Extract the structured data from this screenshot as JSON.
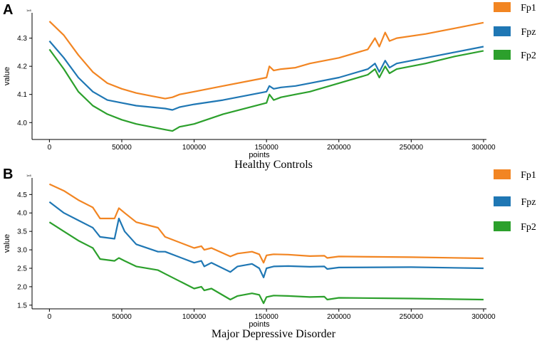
{
  "chart_data": [
    {
      "type": "line",
      "panel": "A",
      "caption": "Healthy Controls",
      "xlabel": "points",
      "ylabel": "value",
      "scale_tag": "1e8",
      "xlim": [
        -12000,
        302000
      ],
      "ylim": [
        3.94,
        4.39
      ],
      "xticks": [
        0,
        50000,
        100000,
        150000,
        200000,
        250000,
        300000
      ],
      "yticks": [
        4.0,
        4.1,
        4.2,
        4.3
      ],
      "ytick_labels": [
        "4.0",
        "4.1",
        "4.2",
        "4.3"
      ],
      "legend_position": "right",
      "series": [
        {
          "name": "Fp1",
          "color": "#F28522",
          "x": [
            0,
            10000,
            20000,
            30000,
            40000,
            50000,
            60000,
            70000,
            80000,
            85000,
            90000,
            100000,
            120000,
            150000,
            152000,
            155000,
            160000,
            170000,
            180000,
            200000,
            220000,
            225000,
            228000,
            232000,
            235000,
            240000,
            260000,
            280000,
            300000
          ],
          "values": [
            4.36,
            4.31,
            4.24,
            4.18,
            4.14,
            4.12,
            4.105,
            4.095,
            4.085,
            4.09,
            4.1,
            4.11,
            4.13,
            4.16,
            4.2,
            4.185,
            4.19,
            4.195,
            4.21,
            4.23,
            4.26,
            4.3,
            4.27,
            4.32,
            4.29,
            4.3,
            4.315,
            4.335,
            4.355
          ]
        },
        {
          "name": "Fpz",
          "color": "#1F77B4",
          "x": [
            0,
            10000,
            20000,
            30000,
            40000,
            50000,
            60000,
            70000,
            80000,
            85000,
            90000,
            100000,
            120000,
            150000,
            152000,
            155000,
            160000,
            170000,
            180000,
            200000,
            220000,
            225000,
            228000,
            232000,
            235000,
            240000,
            260000,
            280000,
            300000
          ],
          "values": [
            4.29,
            4.23,
            4.16,
            4.11,
            4.08,
            4.07,
            4.06,
            4.055,
            4.05,
            4.045,
            4.055,
            4.065,
            4.08,
            4.11,
            4.13,
            4.12,
            4.125,
            4.13,
            4.14,
            4.16,
            4.19,
            4.21,
            4.18,
            4.22,
            4.195,
            4.21,
            4.23,
            4.25,
            4.27
          ]
        },
        {
          "name": "Fp2",
          "color": "#2CA02C",
          "x": [
            0,
            10000,
            20000,
            30000,
            40000,
            50000,
            60000,
            70000,
            80000,
            85000,
            90000,
            100000,
            120000,
            150000,
            152000,
            155000,
            160000,
            170000,
            180000,
            200000,
            220000,
            225000,
            228000,
            232000,
            235000,
            240000,
            260000,
            280000,
            300000
          ],
          "values": [
            4.26,
            4.19,
            4.11,
            4.06,
            4.03,
            4.01,
            3.995,
            3.985,
            3.975,
            3.97,
            3.985,
            3.995,
            4.03,
            4.07,
            4.1,
            4.08,
            4.09,
            4.1,
            4.11,
            4.14,
            4.17,
            4.19,
            4.16,
            4.2,
            4.175,
            4.19,
            4.21,
            4.235,
            4.255
          ]
        }
      ]
    },
    {
      "type": "line",
      "panel": "B",
      "caption": "Major Depressive Disorder",
      "xlabel": "points",
      "ylabel": "value",
      "scale_tag": "1e8",
      "xlim": [
        -12000,
        302000
      ],
      "ylim": [
        1.4,
        4.95
      ],
      "xticks": [
        0,
        50000,
        100000,
        150000,
        200000,
        250000,
        300000
      ],
      "yticks": [
        1.5,
        2.0,
        2.5,
        3.0,
        3.5,
        4.0,
        4.5
      ],
      "ytick_labels": [
        "1.5",
        "2.0",
        "2.5",
        "3.0",
        "3.5",
        "4.0",
        "4.5"
      ],
      "legend_position": "right",
      "series": [
        {
          "name": "Fp1",
          "color": "#F28522",
          "x": [
            0,
            10000,
            20000,
            30000,
            35000,
            45000,
            48000,
            52000,
            60000,
            75000,
            80000,
            100000,
            105000,
            107000,
            112000,
            125000,
            130000,
            140000,
            145000,
            148000,
            150000,
            155000,
            165000,
            180000,
            190000,
            192000,
            200000,
            250000,
            300000
          ],
          "values": [
            4.78,
            4.6,
            4.35,
            4.15,
            3.85,
            3.85,
            4.13,
            4.0,
            3.75,
            3.6,
            3.35,
            3.05,
            3.1,
            3.0,
            3.05,
            2.82,
            2.9,
            2.95,
            2.88,
            2.65,
            2.85,
            2.88,
            2.87,
            2.83,
            2.84,
            2.78,
            2.82,
            2.8,
            2.77
          ]
        },
        {
          "name": "Fpz",
          "color": "#1F77B4",
          "x": [
            0,
            10000,
            20000,
            30000,
            35000,
            45000,
            48000,
            52000,
            60000,
            75000,
            80000,
            100000,
            105000,
            107000,
            112000,
            125000,
            130000,
            140000,
            145000,
            148000,
            150000,
            155000,
            165000,
            180000,
            190000,
            192000,
            200000,
            250000,
            300000
          ],
          "values": [
            4.3,
            4.0,
            3.8,
            3.6,
            3.35,
            3.3,
            3.85,
            3.5,
            3.15,
            2.95,
            2.95,
            2.65,
            2.7,
            2.55,
            2.65,
            2.4,
            2.55,
            2.62,
            2.5,
            2.25,
            2.5,
            2.55,
            2.56,
            2.54,
            2.55,
            2.48,
            2.52,
            2.53,
            2.5
          ]
        },
        {
          "name": "Fp2",
          "color": "#2CA02C",
          "x": [
            0,
            10000,
            20000,
            30000,
            35000,
            45000,
            48000,
            52000,
            60000,
            75000,
            80000,
            100000,
            105000,
            107000,
            112000,
            125000,
            130000,
            140000,
            145000,
            148000,
            150000,
            155000,
            165000,
            180000,
            190000,
            192000,
            200000,
            250000,
            300000
          ],
          "values": [
            3.75,
            3.5,
            3.25,
            3.05,
            2.75,
            2.7,
            2.78,
            2.7,
            2.55,
            2.45,
            2.35,
            1.95,
            2.0,
            1.9,
            1.95,
            1.65,
            1.75,
            1.82,
            1.78,
            1.55,
            1.72,
            1.76,
            1.75,
            1.72,
            1.73,
            1.65,
            1.7,
            1.68,
            1.65
          ]
        }
      ]
    }
  ]
}
